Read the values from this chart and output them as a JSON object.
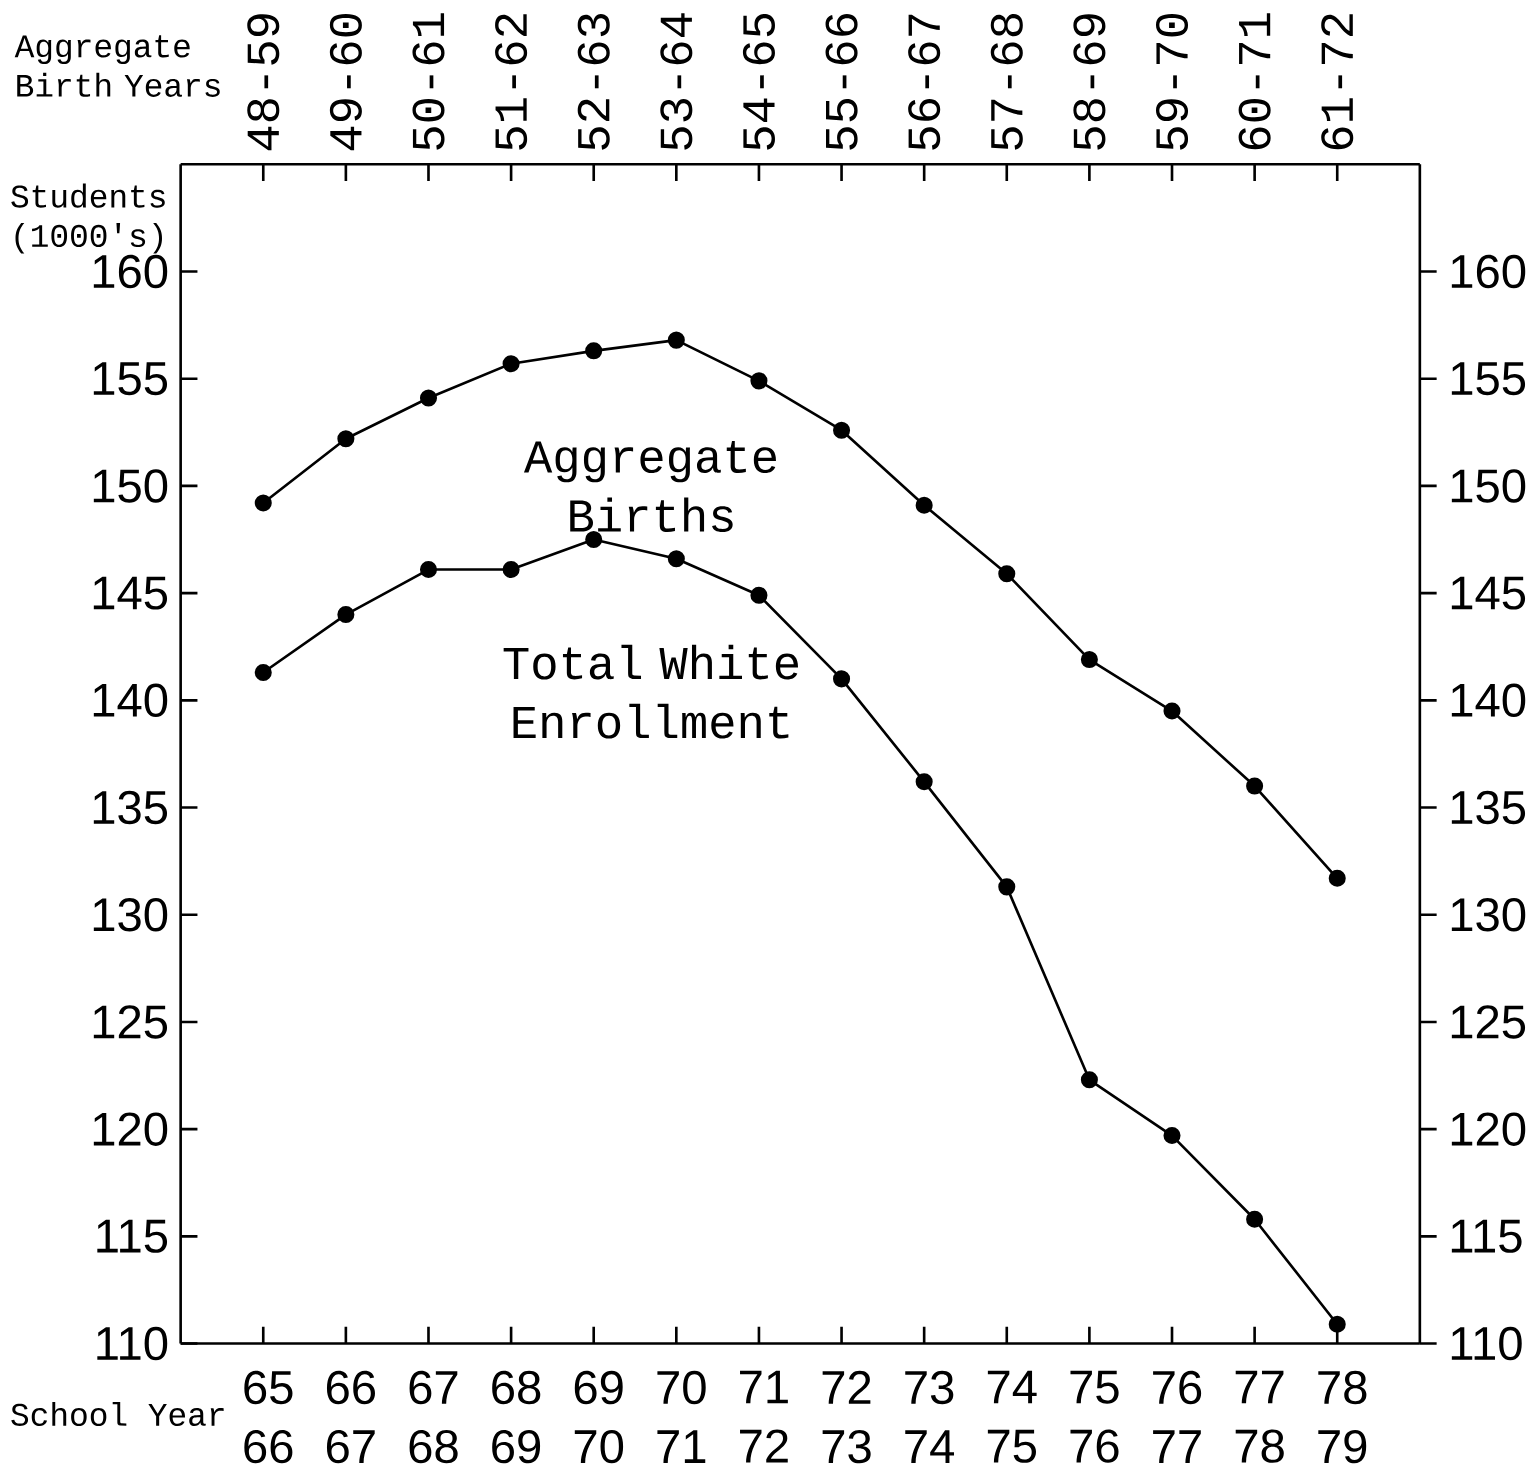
{
  "chart_data": {
    "type": "line",
    "xlabel": "School Year",
    "x2label": "Aggregate Birth Years",
    "ylabel": "Students (1000's)",
    "categories": [
      "65 66",
      "66 67",
      "67 68",
      "68 69",
      "69 70",
      "70 71",
      "71 72",
      "72 73",
      "73 74",
      "74 75",
      "75 76",
      "76 77",
      "77 78",
      "78 79"
    ],
    "annotations": [
      "48-59",
      "49-60",
      "50-61",
      "51-62",
      "52-63",
      "53-64",
      "54-65",
      "55-66",
      "56-67",
      "57-68",
      "58-69",
      "59-70",
      "60-71",
      "61-72"
    ],
    "ylim": [
      110,
      165
    ],
    "yticks": [
      110,
      115,
      120,
      125,
      130,
      135,
      140,
      145,
      150,
      155,
      160
    ],
    "y2lim": [
      110,
      165
    ],
    "y2ticks": [
      110,
      115,
      120,
      125,
      130,
      135,
      140,
      145,
      150,
      155,
      160
    ],
    "series": [
      {
        "name": "Aggregate Births",
        "color": "#000000",
        "values": [
          149.2,
          152.2,
          154.1,
          155.7,
          156.3,
          156.8,
          154.9,
          152.6,
          149.1,
          145.9,
          141.9,
          139.5,
          136.0,
          131.7
        ]
      },
      {
        "name": "Total White Enrollment",
        "color": "#000000",
        "values": [
          141.3,
          144.0,
          146.1,
          146.1,
          147.5,
          146.6,
          144.9,
          141.0,
          136.2,
          131.3,
          122.3,
          119.7,
          115.8,
          110.9
        ]
      }
    ],
    "marker": "circle",
    "line_style": "solid",
    "grid": false
  }
}
